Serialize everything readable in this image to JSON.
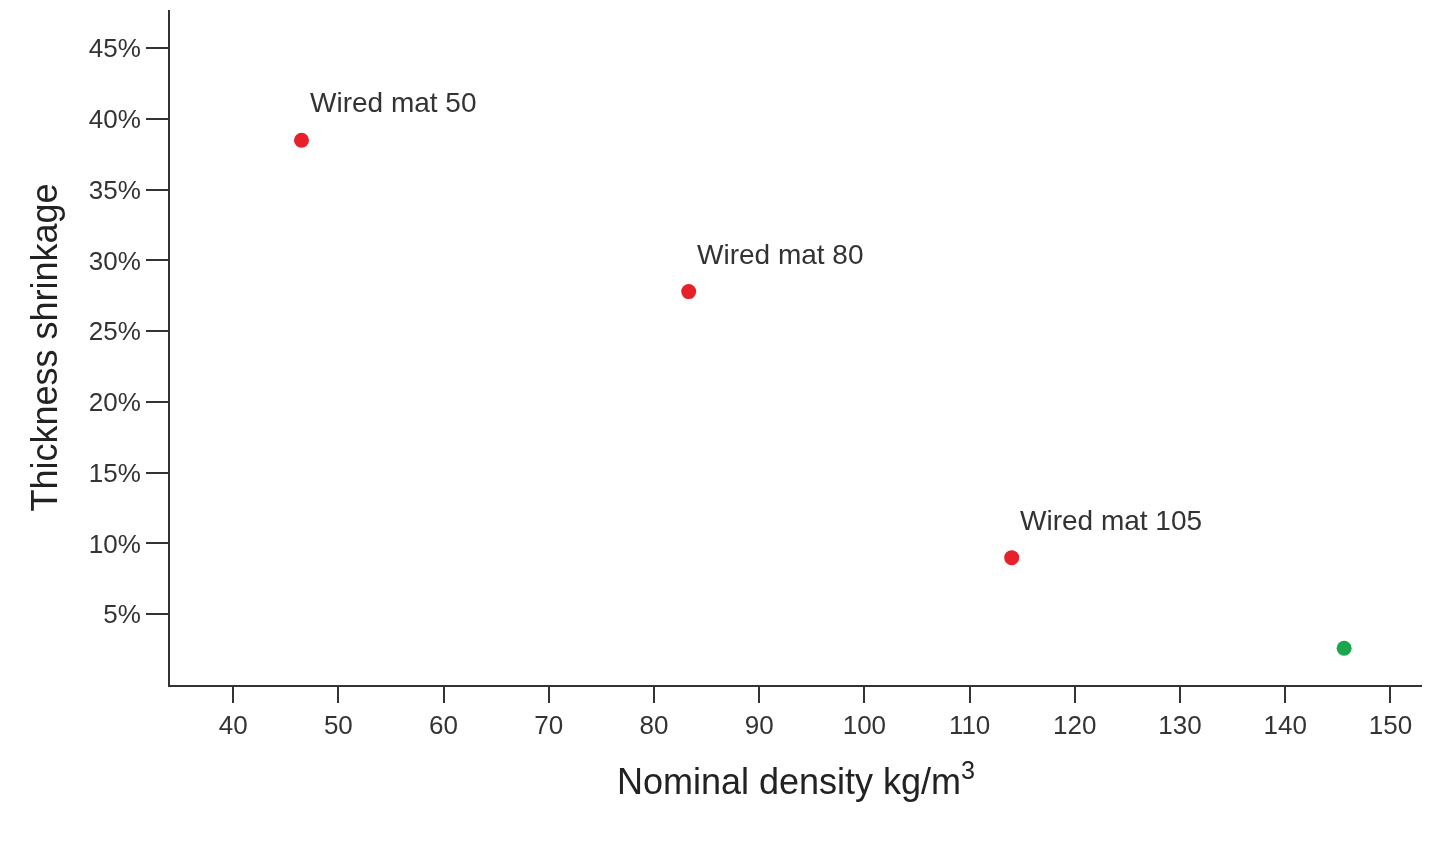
{
  "chart_data": {
    "type": "scatter",
    "xlabel": "Nominal density kg/m$^{3}$",
    "ylabel": "Thickness shrinkage",
    "x": [
      46.5,
      83.3,
      114,
      145.6
    ],
    "values": [
      38.5,
      27.8,
      9.0,
      2.6
    ],
    "colors": [
      "#e8202a",
      "#e8202a",
      "#e8202a",
      "#1aa64a"
    ],
    "marker": "circle",
    "grid": false,
    "xlim": [
      34,
      153
    ],
    "xticks": [
      40,
      50,
      60,
      70,
      80,
      90,
      100,
      110,
      120,
      130,
      140,
      150
    ],
    "ylim": [
      0,
      47.7
    ],
    "yticks": [
      {
        "value": 5,
        "label": "5%"
      },
      {
        "value": 10,
        "label": "10%"
      },
      {
        "value": 15,
        "label": "15%"
      },
      {
        "value": 20,
        "label": "20%"
      },
      {
        "value": 25,
        "label": "25%"
      },
      {
        "value": 30,
        "label": "30%"
      },
      {
        "value": 35,
        "label": "35%"
      },
      {
        "value": 40,
        "label": "40%"
      },
      {
        "value": 45,
        "label": "45%"
      }
    ],
    "annotations": [
      {
        "text": "Wired mat 50",
        "x": 46.5,
        "y": 38.5
      },
      {
        "text": "Wired mat 80",
        "x": 83.3,
        "y": 27.8
      },
      {
        "text": "Wired mat 105",
        "x": 114,
        "y": 9.0
      }
    ]
  }
}
